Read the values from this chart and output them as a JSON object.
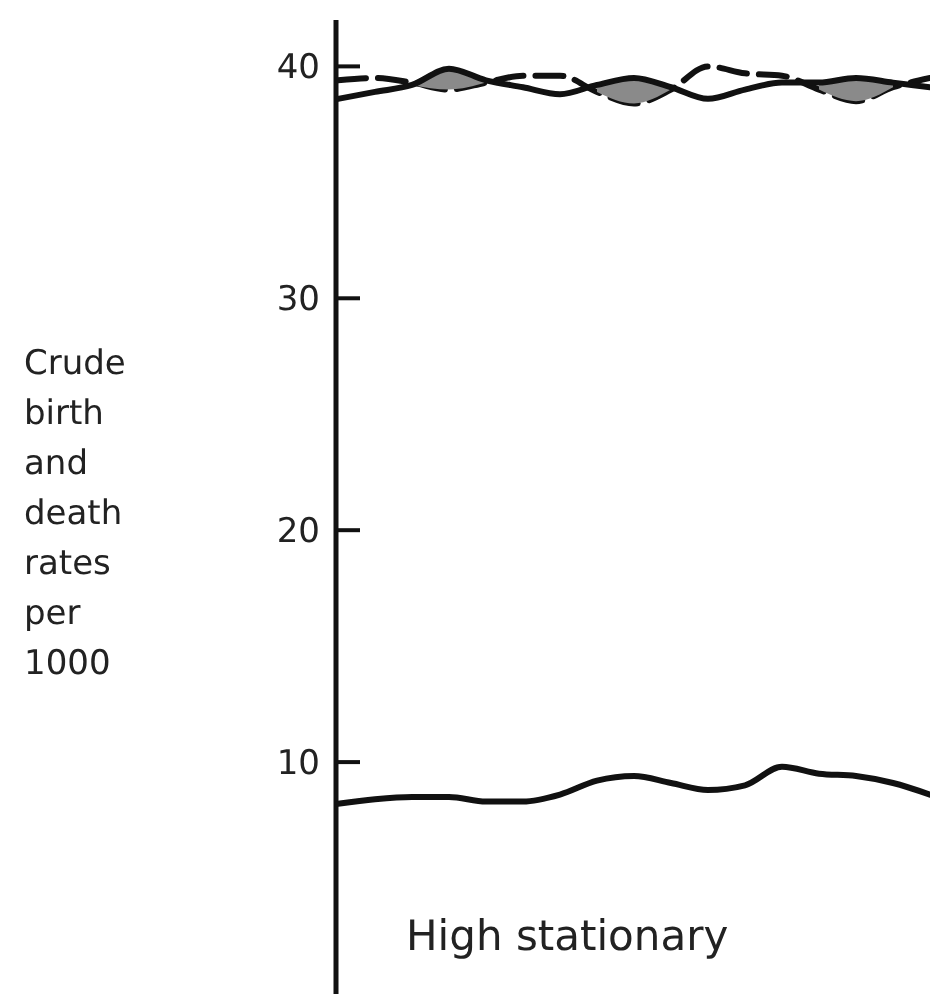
{
  "chart_data": {
    "type": "line",
    "ylabel": "Crude birth and death rates per 1000",
    "annotations": [
      "High stationary"
    ],
    "categories": [
      null,
      null,
      null,
      null,
      null,
      null,
      null,
      null,
      null,
      null,
      null,
      null,
      null,
      null,
      null,
      null,
      null
    ],
    "ylim": [
      0,
      42
    ],
    "yticks": [
      10,
      20,
      30,
      40
    ],
    "tick_labels": "y",
    "grid": false,
    "series": [
      {
        "color": "#111111",
        "line_style": "dashed",
        "values": [
          39.4,
          39.5,
          39.3,
          39.0,
          39.3,
          39.6,
          39.6,
          38.9,
          38.4,
          39.0,
          40.0,
          39.7,
          39.6,
          39.0,
          38.5,
          39.1,
          39.5
        ]
      },
      {
        "color": "#111111",
        "line_style": "solid",
        "values": [
          38.6,
          38.9,
          39.2,
          39.9,
          39.4,
          39.1,
          38.8,
          39.2,
          39.5,
          39.1,
          38.6,
          39.0,
          39.3,
          39.3,
          39.5,
          39.3,
          39.1
        ],
        "lower": [
          null,
          null,
          39.2,
          39.0,
          39.3,
          null,
          null,
          38.9,
          38.4,
          39.0,
          null,
          null,
          null,
          39.0,
          38.5,
          39.1,
          null
        ],
        "upper": [
          null,
          null,
          39.3,
          39.9,
          39.4,
          null,
          null,
          39.2,
          39.5,
          39.1,
          null,
          null,
          null,
          39.3,
          39.5,
          39.3,
          null
        ]
      },
      {
        "color": "#111111",
        "line_style": "solid",
        "values": [
          8.2,
          8.4,
          8.5,
          8.5,
          8.3,
          8.3,
          8.6,
          9.2,
          9.4,
          9.1,
          8.8,
          9.0,
          9.8,
          9.5,
          9.4,
          9.1,
          8.6
        ]
      }
    ]
  }
}
